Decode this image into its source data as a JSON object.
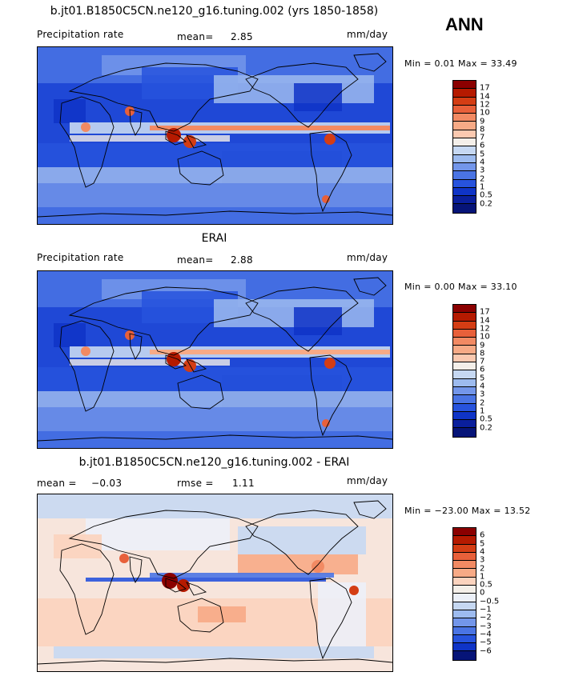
{
  "season": "ANN",
  "panels": [
    {
      "title": "b.jt01.B1850C5CN.ne120_g16.tuning.002 (yrs 1850-1858)",
      "left_label": "Precipitation rate",
      "stat_label": "mean=",
      "stat_value": "2.85",
      "extra_label": "",
      "extra_value": "",
      "units": "mm/day",
      "min_max": "Min =   0.01  Max =  33.49",
      "kind": "abs",
      "colorbar": [
        "17",
        "14",
        "12",
        "10",
        "9",
        "8",
        "7",
        "6",
        "5",
        "4",
        "3",
        "2",
        "1",
        "0.5",
        "0.2"
      ]
    },
    {
      "title": "ERAI",
      "left_label": "Precipitation rate",
      "stat_label": "mean=",
      "stat_value": "2.88",
      "extra_label": "",
      "extra_value": "",
      "units": "mm/day",
      "min_max": "Min =   0.00  Max =  33.10",
      "kind": "abs2",
      "colorbar": [
        "17",
        "14",
        "12",
        "10",
        "9",
        "8",
        "7",
        "6",
        "5",
        "4",
        "3",
        "2",
        "1",
        "0.5",
        "0.2"
      ]
    },
    {
      "title": "b.jt01.B1850C5CN.ne120_g16.tuning.002 - ERAI",
      "left_label": "",
      "stat_label": "mean =",
      "stat_value": "−0.03",
      "extra_label": "rmse =",
      "extra_value": "1.11",
      "units": "mm/day",
      "min_max": "Min = −23.00  Max =  13.52",
      "kind": "diff",
      "colorbar": [
        "6",
        "5",
        "4",
        "3",
        "2",
        "1",
        "0.5",
        "0",
        "−0.5",
        "−1",
        "−2",
        "−3",
        "−4",
        "−5",
        "−6"
      ]
    }
  ],
  "colors": {
    "abs": [
      "#8b0000",
      "#b51a00",
      "#d43d14",
      "#e8603a",
      "#f28a63",
      "#f7aa86",
      "#fbc9b0",
      "#f4efe9",
      "#c6d8f2",
      "#9dbbef",
      "#7396ea",
      "#4a74e4",
      "#2753dd",
      "#0f34c7",
      "#0a1f9c",
      "#061478"
    ],
    "diff": [
      "#8b0000",
      "#b51a00",
      "#d43d14",
      "#e8603a",
      "#f28a63",
      "#f7aa86",
      "#fbd3be",
      "#f4efe9",
      "#ecf0f8",
      "#c6d8f2",
      "#9dbbef",
      "#7396ea",
      "#4a74e4",
      "#2753dd",
      "#0f34c7",
      "#061478"
    ]
  }
}
